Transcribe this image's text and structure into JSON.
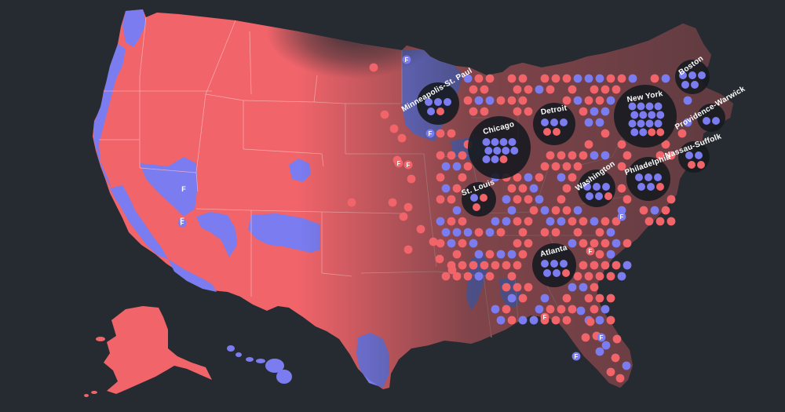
{
  "colors": {
    "background": "#252b30",
    "republican": "#f0646a",
    "democrat": "#7b7cf0",
    "state_border": "#ffbdbd",
    "cluster_halo": "#161b20"
  },
  "legend_letter": "F",
  "metro_areas": [
    {
      "id": "minneapolis",
      "label": "Minneapolis-St. Paul",
      "dots": [
        "D",
        "D",
        "D",
        "D",
        "R"
      ]
    },
    {
      "id": "detroit",
      "label": "Detroit",
      "dots": [
        "D",
        "D",
        "D",
        "R",
        "R"
      ]
    },
    {
      "id": "chicago",
      "label": "Chicago",
      "dots": [
        "D",
        "D",
        "D",
        "D",
        "D",
        "D",
        "D",
        "D",
        "D",
        "D",
        "R"
      ]
    },
    {
      "id": "st-louis",
      "label": "St. Louis",
      "dots": [
        "D",
        "R",
        "R"
      ]
    },
    {
      "id": "washington",
      "label": "Washington",
      "dots": [
        "D",
        "D",
        "D",
        "D",
        "D",
        "R"
      ]
    },
    {
      "id": "new-york",
      "label": "New York",
      "dots": [
        "D",
        "D",
        "D",
        "D",
        "D",
        "D",
        "D",
        "D",
        "D",
        "D",
        "D",
        "D",
        "D",
        "D",
        "R",
        "R"
      ]
    },
    {
      "id": "philadelphia",
      "label": "Philadelphia",
      "dots": [
        "D",
        "D",
        "D",
        "D",
        "D",
        "R"
      ]
    },
    {
      "id": "boston",
      "label": "Boston",
      "dots": [
        "D",
        "D",
        "D",
        "D",
        "D"
      ]
    },
    {
      "id": "providence",
      "label": "Providence-Warwick",
      "dots": [
        "D",
        "D"
      ]
    },
    {
      "id": "nassau-suffolk",
      "label": "Nassau-Suffolk",
      "dots": [
        "D",
        "D",
        "R",
        "R"
      ]
    },
    {
      "id": "atlanta",
      "label": "Atlanta",
      "dots": [
        "D",
        "D",
        "D",
        "D",
        "D",
        "R"
      ]
    }
  ]
}
